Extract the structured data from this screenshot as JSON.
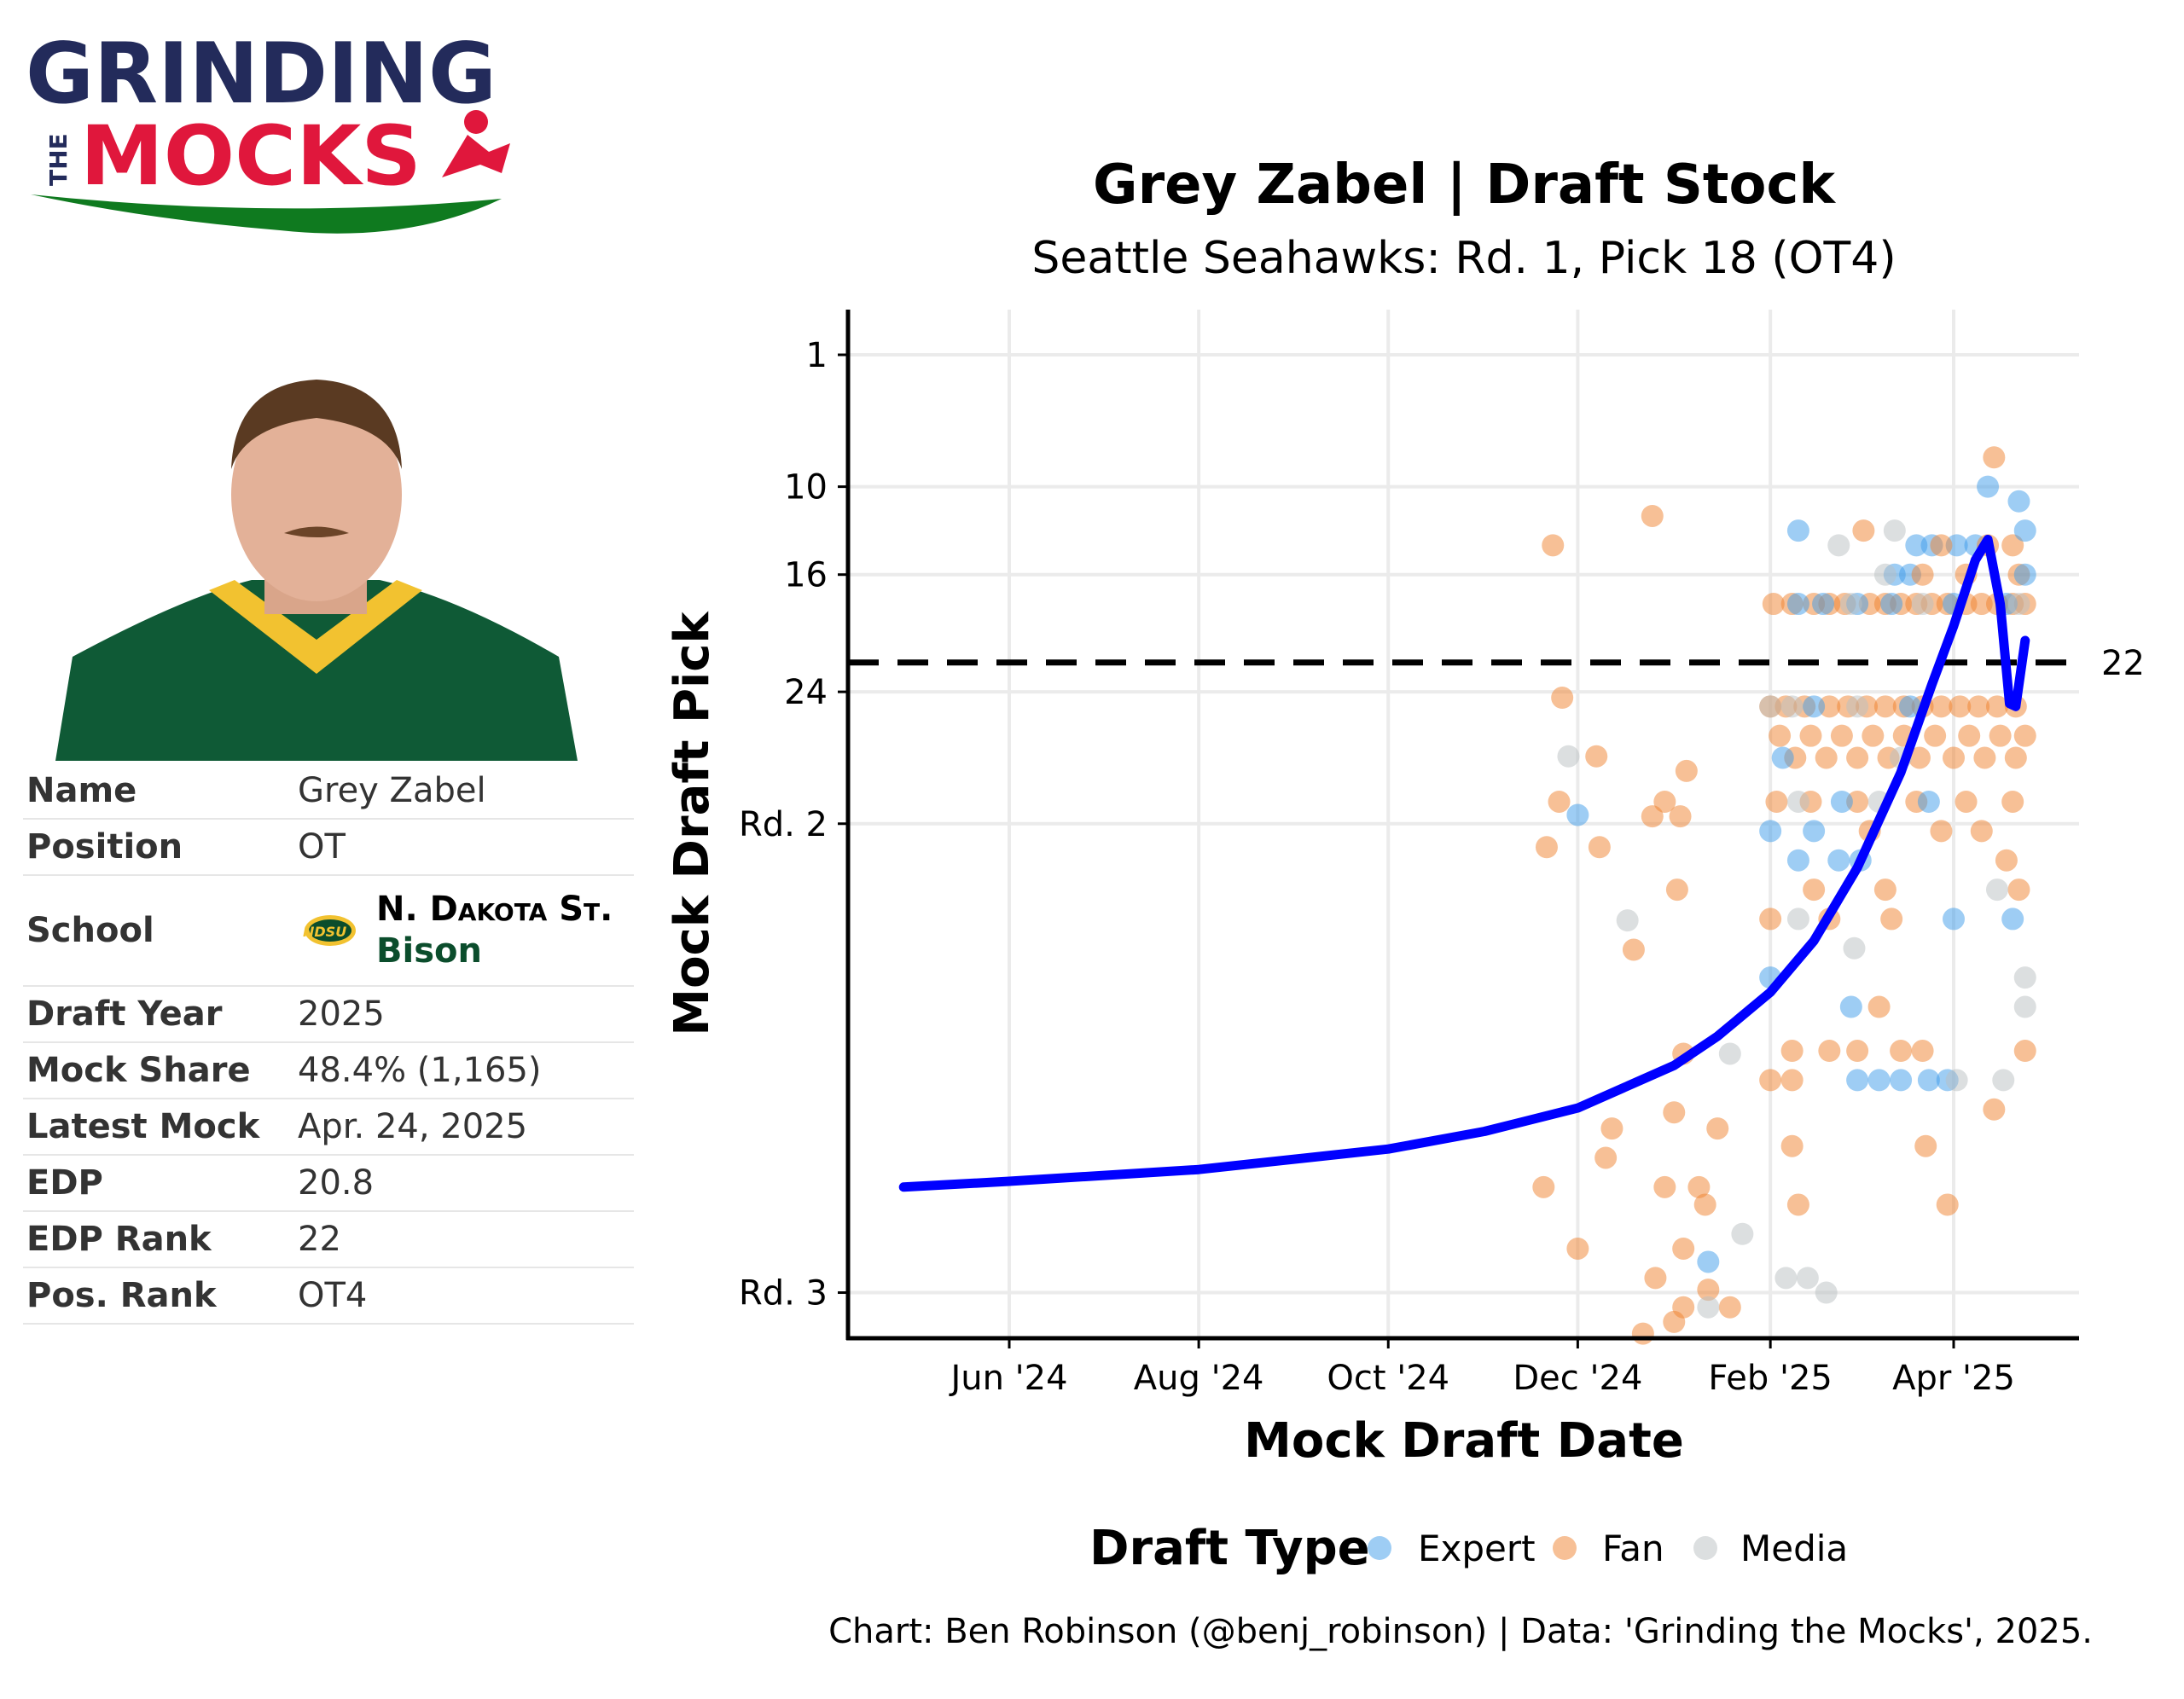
{
  "logo": {
    "line1": "GRINDING",
    "line2": "MOCKS",
    "small": "THE",
    "colors": {
      "navy": "#232b5b",
      "red": "#e0173c",
      "green": "#0f7a1f"
    }
  },
  "player_photo": {
    "alt": "Grey Zabel headshot"
  },
  "info_table": [
    {
      "key": "Name",
      "value": "Grey Zabel"
    },
    {
      "key": "Position",
      "value": "OT"
    },
    {
      "key": "School",
      "value": "N. Dakota St.",
      "mascot": "Bison",
      "logo_text": "NDSU"
    },
    {
      "key": "Draft Year",
      "value": "2025"
    },
    {
      "key": "Mock Share",
      "value": "48.4% (1,165)"
    },
    {
      "key": "Latest Mock",
      "value": "Apr. 24, 2025"
    },
    {
      "key": "EDP",
      "value": "20.8"
    },
    {
      "key": "EDP Rank",
      "value": "22"
    },
    {
      "key": "Pos. Rank",
      "value": "OT4"
    }
  ],
  "chart_data": {
    "type": "scatter",
    "title": "Grey Zabel | Draft Stock",
    "subtitle": "Seattle Seahawks: Rd. 1, Pick 18 (OT4)",
    "xlabel": "Mock Draft Date",
    "ylabel": "Mock Draft Pick",
    "x_ticks": [
      [
        "2024-06-01",
        "Jun '24"
      ],
      [
        "2024-08-01",
        "Aug '24"
      ],
      [
        "2024-10-01",
        "Oct '24"
      ],
      [
        "2024-12-01",
        "Dec '24"
      ],
      [
        "2025-02-01",
        "Feb '25"
      ],
      [
        "2025-04-01",
        "Apr '25"
      ]
    ],
    "y_ticks": [
      [
        1,
        "1"
      ],
      [
        10,
        "10"
      ],
      [
        16,
        "16"
      ],
      [
        24,
        "24"
      ],
      [
        33,
        "Rd. 2"
      ],
      [
        65,
        "Rd. 3"
      ]
    ],
    "y_reversed": true,
    "ylim": [
      -2,
      68
    ],
    "xlim": [
      "2024-04-15",
      "2025-05-05"
    ],
    "grid": true,
    "reference_line": {
      "value": 22,
      "label": "22",
      "style": "dashed"
    },
    "legend": {
      "title": "Draft Type",
      "placement": "bottom",
      "entries": [
        "Expert",
        "Fan",
        "Media"
      ]
    },
    "colors": {
      "Expert": "#3d9be9",
      "Fan": "#f0812e",
      "Media": "#b9bfc2",
      "trend": "#0000ff"
    },
    "caption": "Chart: Ben Robinson (@benj_robinson) | Data: 'Grinding the Mocks', 2025.",
    "trend": [
      [
        "2024-04-28",
        57.8
      ],
      [
        "2024-06-01",
        57.4
      ],
      [
        "2024-08-01",
        56.6
      ],
      [
        "2024-10-01",
        55.2
      ],
      [
        "2024-11-01",
        54
      ],
      [
        "2024-12-01",
        52.4
      ],
      [
        "2025-01-01",
        49.5
      ],
      [
        "2025-01-15",
        47.5
      ],
      [
        "2025-02-01",
        44.5
      ],
      [
        "2025-02-15",
        41
      ],
      [
        "2025-03-01",
        36
      ],
      [
        "2025-03-15",
        29.5
      ],
      [
        "2025-03-25",
        23.5
      ],
      [
        "2025-04-01",
        19.5
      ],
      [
        "2025-04-08",
        15
      ],
      [
        "2025-04-12",
        13.6
      ],
      [
        "2025-04-16",
        18
      ],
      [
        "2025-04-19",
        24.8
      ],
      [
        "2025-04-21",
        25
      ],
      [
        "2025-04-24",
        20.5
      ]
    ],
    "points": [
      [
        "2024-11-23",
        14,
        "Fan"
      ],
      [
        "2024-12-25",
        12,
        "Fan"
      ],
      [
        "2024-11-26",
        24.4,
        "Fan"
      ],
      [
        "2024-12-07",
        28.4,
        "Fan"
      ],
      [
        "2024-11-25",
        31.5,
        "Fan"
      ],
      [
        "2024-11-21",
        34.6,
        "Fan"
      ],
      [
        "2024-12-08",
        34.6,
        "Fan"
      ],
      [
        "2024-12-19",
        41.6,
        "Fan"
      ],
      [
        "2025-01-02",
        37.5,
        "Fan"
      ],
      [
        "2025-01-05",
        29.4,
        "Fan"
      ],
      [
        "2024-12-29",
        31.5,
        "Fan"
      ],
      [
        "2024-12-25",
        32.5,
        "Fan"
      ],
      [
        "2025-01-03",
        32.5,
        "Fan"
      ],
      [
        "2024-11-20",
        57.8,
        "Fan"
      ],
      [
        "2024-12-01",
        62,
        "Fan"
      ],
      [
        "2024-12-10",
        55.8,
        "Fan"
      ],
      [
        "2024-12-12",
        53.8,
        "Fan"
      ],
      [
        "2025-01-01",
        52.7,
        "Fan"
      ],
      [
        "2024-12-29",
        57.8,
        "Fan"
      ],
      [
        "2025-01-04",
        48.7,
        "Fan"
      ],
      [
        "2025-01-09",
        57.8,
        "Fan"
      ],
      [
        "2025-01-11",
        59,
        "Fan"
      ],
      [
        "2025-01-04",
        62,
        "Fan"
      ],
      [
        "2024-12-26",
        64,
        "Fan"
      ],
      [
        "2025-01-12",
        64.8,
        "Fan"
      ],
      [
        "2025-01-01",
        67,
        "Fan"
      ],
      [
        "2024-12-22",
        67.8,
        "Fan"
      ],
      [
        "2025-01-04",
        66,
        "Fan"
      ],
      [
        "2025-01-19",
        66,
        "Fan"
      ],
      [
        "2025-01-15",
        53.8,
        "Fan"
      ],
      [
        "2024-11-28",
        28.4,
        "Media"
      ],
      [
        "2024-12-17",
        39.6,
        "Media"
      ],
      [
        "2025-01-23",
        61,
        "Media"
      ],
      [
        "2025-01-12",
        66,
        "Media"
      ],
      [
        "2025-01-19",
        48.7,
        "Media"
      ],
      [
        "2025-02-06",
        64,
        "Media"
      ],
      [
        "2025-02-13",
        64,
        "Media"
      ],
      [
        "2025-02-19",
        65,
        "Media"
      ],
      [
        "2024-12-01",
        32.4,
        "Expert"
      ],
      [
        "2025-01-12",
        62.9,
        "Expert"
      ],
      [
        "2025-02-02",
        18,
        "Fan"
      ],
      [
        "2025-02-08",
        18,
        "Fan"
      ],
      [
        "2025-02-15",
        18,
        "Fan"
      ],
      [
        "2025-02-20",
        18,
        "Fan"
      ],
      [
        "2025-02-25",
        18,
        "Fan"
      ],
      [
        "2025-03-05",
        18,
        "Fan"
      ],
      [
        "2025-03-10",
        18,
        "Fan"
      ],
      [
        "2025-03-15",
        18,
        "Fan"
      ],
      [
        "2025-03-20",
        18,
        "Fan"
      ],
      [
        "2025-03-25",
        18,
        "Fan"
      ],
      [
        "2025-03-30",
        18,
        "Fan"
      ],
      [
        "2025-04-05",
        18,
        "Fan"
      ],
      [
        "2025-04-10",
        18,
        "Fan"
      ],
      [
        "2025-04-15",
        18,
        "Fan"
      ],
      [
        "2025-04-20",
        18,
        "Fan"
      ],
      [
        "2025-04-24",
        18,
        "Fan"
      ],
      [
        "2025-02-10",
        18,
        "Expert"
      ],
      [
        "2025-02-18",
        18,
        "Expert"
      ],
      [
        "2025-03-01",
        18,
        "Expert"
      ],
      [
        "2025-03-12",
        18,
        "Expert"
      ],
      [
        "2025-04-01",
        18,
        "Expert"
      ],
      [
        "2025-04-18",
        18,
        "Expert"
      ],
      [
        "2025-02-27",
        18,
        "Media"
      ],
      [
        "2025-03-22",
        18,
        "Media"
      ],
      [
        "2025-04-22",
        18,
        "Media"
      ],
      [
        "2025-02-10",
        13,
        "Expert"
      ],
      [
        "2025-02-23",
        14,
        "Media"
      ],
      [
        "2025-03-03",
        13,
        "Fan"
      ],
      [
        "2025-03-13",
        13,
        "Media"
      ],
      [
        "2025-03-20",
        14,
        "Expert"
      ],
      [
        "2025-03-25",
        14,
        "Expert"
      ],
      [
        "2025-04-02",
        14,
        "Expert"
      ],
      [
        "2025-04-08",
        14,
        "Expert"
      ],
      [
        "2025-03-28",
        14,
        "Fan"
      ],
      [
        "2025-04-12",
        14,
        "Fan"
      ],
      [
        "2025-04-20",
        14,
        "Fan"
      ],
      [
        "2025-04-24",
        13,
        "Expert"
      ],
      [
        "2025-03-13",
        16,
        "Expert"
      ],
      [
        "2025-03-18",
        16,
        "Expert"
      ],
      [
        "2025-03-22",
        16,
        "Fan"
      ],
      [
        "2025-04-05",
        16,
        "Fan"
      ],
      [
        "2025-04-22",
        16,
        "Fan"
      ],
      [
        "2025-03-10",
        16,
        "Media"
      ],
      [
        "2025-04-24",
        16,
        "Expert"
      ],
      [
        "2025-04-14",
        8,
        "Fan"
      ],
      [
        "2025-04-12",
        10,
        "Expert"
      ],
      [
        "2025-04-22",
        11,
        "Expert"
      ],
      [
        "2025-02-01",
        25,
        "Fan"
      ],
      [
        "2025-02-06",
        25,
        "Fan"
      ],
      [
        "2025-02-12",
        25,
        "Fan"
      ],
      [
        "2025-02-20",
        25,
        "Fan"
      ],
      [
        "2025-02-26",
        25,
        "Fan"
      ],
      [
        "2025-03-04",
        25,
        "Fan"
      ],
      [
        "2025-03-10",
        25,
        "Fan"
      ],
      [
        "2025-03-16",
        25,
        "Fan"
      ],
      [
        "2025-03-22",
        25,
        "Fan"
      ],
      [
        "2025-03-28",
        25,
        "Fan"
      ],
      [
        "2025-04-03",
        25,
        "Fan"
      ],
      [
        "2025-04-09",
        25,
        "Fan"
      ],
      [
        "2025-04-15",
        25,
        "Fan"
      ],
      [
        "2025-04-21",
        25,
        "Fan"
      ],
      [
        "2025-02-01",
        25,
        "Media"
      ],
      [
        "2025-02-08",
        25,
        "Media"
      ],
      [
        "2025-03-01",
        25,
        "Media"
      ],
      [
        "2025-02-15",
        25,
        "Expert"
      ],
      [
        "2025-03-18",
        25,
        "Expert"
      ],
      [
        "2025-02-04",
        27,
        "Fan"
      ],
      [
        "2025-02-14",
        27,
        "Fan"
      ],
      [
        "2025-02-24",
        27,
        "Fan"
      ],
      [
        "2025-03-06",
        27,
        "Fan"
      ],
      [
        "2025-03-16",
        27,
        "Fan"
      ],
      [
        "2025-03-26",
        27,
        "Fan"
      ],
      [
        "2025-04-06",
        27,
        "Fan"
      ],
      [
        "2025-04-16",
        27,
        "Fan"
      ],
      [
        "2025-04-24",
        27,
        "Fan"
      ],
      [
        "2025-02-09",
        28.5,
        "Fan"
      ],
      [
        "2025-02-19",
        28.5,
        "Fan"
      ],
      [
        "2025-03-01",
        28.5,
        "Fan"
      ],
      [
        "2025-03-11",
        28.5,
        "Fan"
      ],
      [
        "2025-03-21",
        28.5,
        "Fan"
      ],
      [
        "2025-04-01",
        28.5,
        "Fan"
      ],
      [
        "2025-04-11",
        28.5,
        "Fan"
      ],
      [
        "2025-04-21",
        28.5,
        "Fan"
      ],
      [
        "2025-02-05",
        28.5,
        "Expert"
      ],
      [
        "2025-03-15",
        28.5,
        "Media"
      ],
      [
        "2025-02-03",
        31.5,
        "Fan"
      ],
      [
        "2025-02-14",
        31.5,
        "Fan"
      ],
      [
        "2025-03-01",
        31.5,
        "Fan"
      ],
      [
        "2025-03-20",
        31.5,
        "Fan"
      ],
      [
        "2025-04-05",
        31.5,
        "Fan"
      ],
      [
        "2025-04-20",
        31.5,
        "Fan"
      ],
      [
        "2025-02-24",
        31.5,
        "Expert"
      ],
      [
        "2025-03-24",
        31.5,
        "Expert"
      ],
      [
        "2025-02-10",
        31.5,
        "Media"
      ],
      [
        "2025-03-08",
        31.5,
        "Media"
      ],
      [
        "2025-02-01",
        33.5,
        "Expert"
      ],
      [
        "2025-02-15",
        33.5,
        "Expert"
      ],
      [
        "2025-03-05",
        33.5,
        "Fan"
      ],
      [
        "2025-03-28",
        33.5,
        "Fan"
      ],
      [
        "2025-04-10",
        33.5,
        "Fan"
      ],
      [
        "2025-02-10",
        35.5,
        "Expert"
      ],
      [
        "2025-02-23",
        35.5,
        "Expert"
      ],
      [
        "2025-03-02",
        35.5,
        "Expert"
      ],
      [
        "2025-04-18",
        35.5,
        "Fan"
      ],
      [
        "2025-02-15",
        37.5,
        "Fan"
      ],
      [
        "2025-03-10",
        37.5,
        "Fan"
      ],
      [
        "2025-04-22",
        37.5,
        "Fan"
      ],
      [
        "2025-04-15",
        37.5,
        "Media"
      ],
      [
        "2025-02-01",
        39.5,
        "Fan"
      ],
      [
        "2025-02-20",
        39.5,
        "Fan"
      ],
      [
        "2025-03-12",
        39.5,
        "Fan"
      ],
      [
        "2025-04-01",
        39.5,
        "Expert"
      ],
      [
        "2025-04-20",
        39.5,
        "Expert"
      ],
      [
        "2025-02-10",
        39.5,
        "Media"
      ],
      [
        "2025-02-28",
        41.5,
        "Media"
      ],
      [
        "2025-02-01",
        43.5,
        "Expert"
      ],
      [
        "2025-04-24",
        43.5,
        "Media"
      ],
      [
        "2025-02-27",
        45.5,
        "Expert"
      ],
      [
        "2025-03-08",
        45.5,
        "Fan"
      ],
      [
        "2025-04-24",
        45.5,
        "Media"
      ],
      [
        "2025-02-08",
        48.5,
        "Fan"
      ],
      [
        "2025-02-20",
        48.5,
        "Fan"
      ],
      [
        "2025-03-01",
        48.5,
        "Fan"
      ],
      [
        "2025-03-15",
        48.5,
        "Fan"
      ],
      [
        "2025-03-22",
        48.5,
        "Fan"
      ],
      [
        "2025-04-24",
        48.5,
        "Fan"
      ],
      [
        "2025-03-01",
        50.5,
        "Expert"
      ],
      [
        "2025-03-08",
        50.5,
        "Expert"
      ],
      [
        "2025-03-15",
        50.5,
        "Expert"
      ],
      [
        "2025-03-24",
        50.5,
        "Expert"
      ],
      [
        "2025-03-30",
        50.5,
        "Expert"
      ],
      [
        "2025-04-02",
        50.5,
        "Media"
      ],
      [
        "2025-04-17",
        50.5,
        "Media"
      ],
      [
        "2025-02-01",
        50.5,
        "Fan"
      ],
      [
        "2025-02-08",
        50.5,
        "Fan"
      ],
      [
        "2025-02-08",
        55,
        "Fan"
      ],
      [
        "2025-03-23",
        55,
        "Fan"
      ],
      [
        "2025-03-30",
        59,
        "Fan"
      ],
      [
        "2025-02-10",
        59,
        "Fan"
      ],
      [
        "2025-04-14",
        52.5,
        "Fan"
      ]
    ]
  }
}
